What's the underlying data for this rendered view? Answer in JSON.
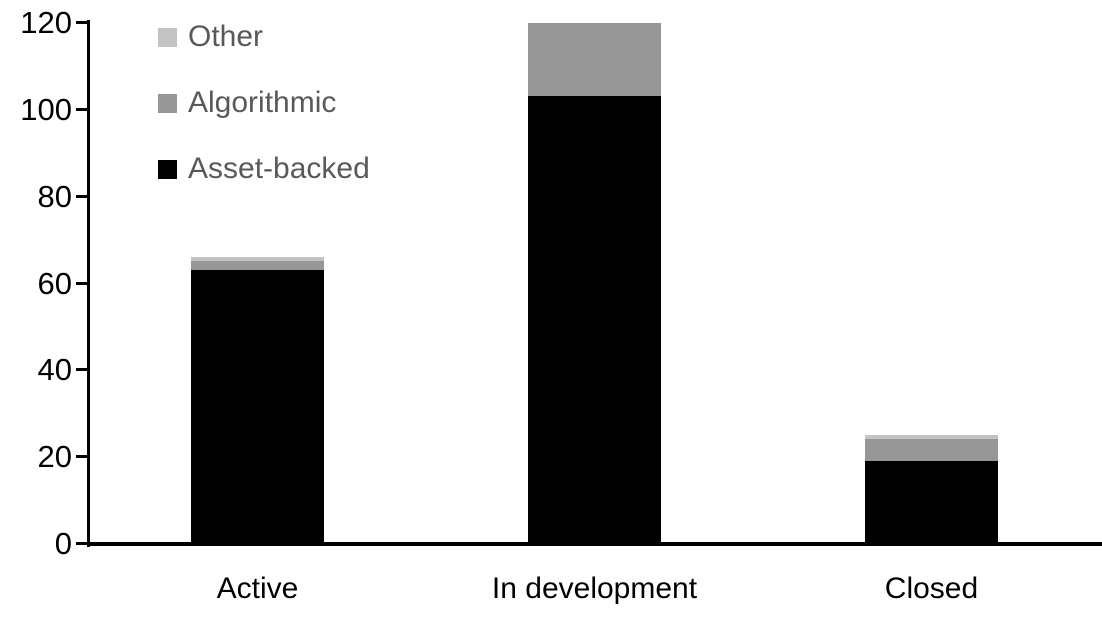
{
  "chart_data": {
    "type": "bar",
    "stacked": true,
    "title": "",
    "categories": [
      "Active",
      "In development",
      "Closed"
    ],
    "series": [
      {
        "name": "Asset-backed",
        "color": "#000000",
        "values": [
          63,
          103,
          19
        ]
      },
      {
        "name": "Algorithmic",
        "color": "#969696",
        "values": [
          2,
          17,
          5
        ]
      },
      {
        "name": "Other",
        "color": "#c3c3c3",
        "values": [
          1,
          0,
          1
        ]
      }
    ],
    "stack_totals": [
      66,
      120,
      25
    ],
    "xlabel": "",
    "ylabel": "",
    "ylim": [
      0,
      120
    ],
    "yticks": [
      0,
      20,
      40,
      60,
      80,
      100,
      120
    ],
    "grid": false,
    "legend": {
      "position": "top-left",
      "order": [
        "Other",
        "Algorithmic",
        "Asset-backed"
      ],
      "text_color": "#595959"
    },
    "axis_color": "#000000",
    "background": "#ffffff"
  }
}
